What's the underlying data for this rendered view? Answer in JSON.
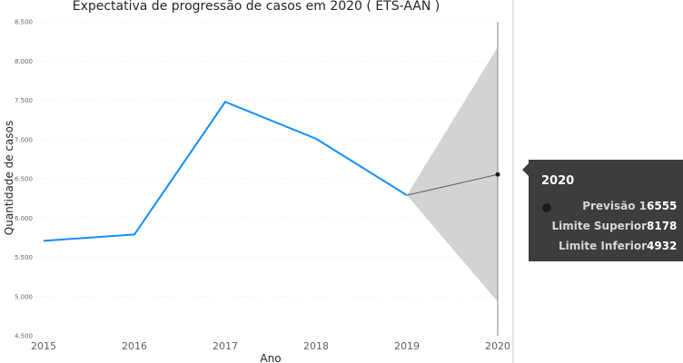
{
  "chart_data": {
    "type": "line",
    "title": "Expectativa de progressão de casos em 2020 ( ETS-AAN )",
    "xlabel": "Ano",
    "ylabel": "Quantidade de casos",
    "x": [
      "2015",
      "2016",
      "2017",
      "2018",
      "2019",
      "2020"
    ],
    "ylim": [
      4500,
      8500
    ],
    "yticks": [
      "4.500",
      "5.000",
      "5.500",
      "6.000",
      "6.500",
      "7.000",
      "7.500",
      "8.000",
      "8.500"
    ],
    "grid": true,
    "series": [
      {
        "values": [
          5710,
          5790,
          7480,
          7010,
          6290,
          null
        ]
      },
      {
        "name": "Previsão 1",
        "values": [
          null,
          null,
          null,
          null,
          6290,
          6555
        ]
      }
    ],
    "confidence_band": {
      "x": [
        "2019",
        "2020"
      ],
      "upper": [
        6290,
        8178
      ],
      "lower": [
        6290,
        4932
      ]
    },
    "colors": {
      "actual": "#118DFF",
      "forecast": "#606060",
      "band": "#D3D3D3",
      "grid": "#e8e8e8"
    }
  },
  "tooltip": {
    "title": "2020",
    "rows": [
      {
        "label": "Previsão 1",
        "value": "6555"
      },
      {
        "label": "Limite Superior",
        "value": "8178"
      },
      {
        "label": "Limite Inferior",
        "value": "4932"
      }
    ]
  }
}
